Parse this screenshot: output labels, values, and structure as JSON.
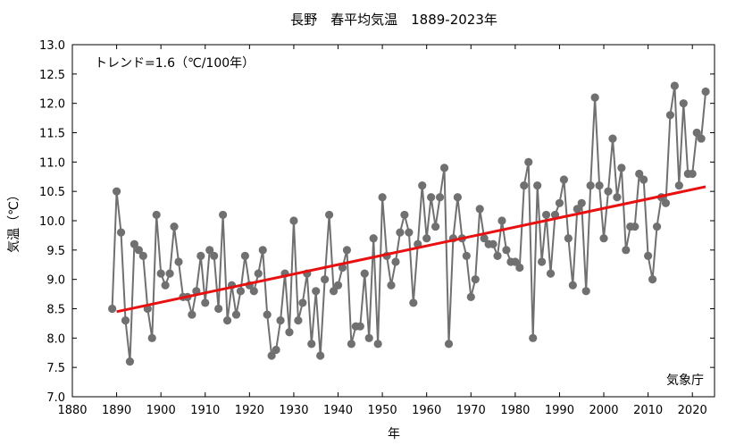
{
  "chart_data": {
    "type": "line",
    "title": "長野　春平均気温　1889-2023年",
    "xlabel": "年",
    "ylabel": "気温（℃）",
    "xlim": [
      1880,
      2025
    ],
    "ylim": [
      7.0,
      13.0
    ],
    "xticks": [
      1880,
      1890,
      1900,
      1910,
      1920,
      1930,
      1940,
      1950,
      1960,
      1970,
      1980,
      1990,
      2000,
      2010,
      2020
    ],
    "yticks": [
      7.0,
      7.5,
      8.0,
      8.5,
      9.0,
      9.5,
      10.0,
      10.5,
      11.0,
      11.5,
      12.0,
      12.5,
      13.0
    ],
    "trend_label": "トレンド=1.6（℃/100年）",
    "credit": "気象庁",
    "series_color": "#707070",
    "trend_color": "#e81010",
    "trend": {
      "x": [
        1890,
        2023
      ],
      "y": [
        8.45,
        10.58
      ]
    },
    "series": [
      {
        "x": [
          1889,
          1890,
          1891,
          1892,
          1893,
          1894,
          1895,
          1896,
          1897,
          1898,
          1899,
          1900,
          1901,
          1902,
          1903,
          1904,
          1905,
          1906,
          1907,
          1908,
          1909,
          1910,
          1911,
          1912,
          1913,
          1914,
          1915,
          1916,
          1917,
          1918,
          1919,
          1920,
          1921,
          1922,
          1923,
          1924,
          1925,
          1926,
          1927,
          1928,
          1929,
          1930,
          1931,
          1932,
          1933,
          1934,
          1935,
          1936,
          1937,
          1938,
          1939,
          1940,
          1941,
          1942,
          1943,
          1944,
          1945,
          1946,
          1947,
          1948,
          1949,
          1950,
          1951,
          1952,
          1953,
          1954,
          1955,
          1956,
          1957,
          1958,
          1959,
          1960,
          1961,
          1962,
          1963,
          1964,
          1965,
          1966,
          1967,
          1968,
          1969,
          1970,
          1971,
          1972,
          1973,
          1974,
          1975,
          1976,
          1977,
          1978,
          1979,
          1980,
          1981,
          1982,
          1983,
          1984,
          1985,
          1986,
          1987,
          1988,
          1989,
          1990,
          1991,
          1992,
          1993,
          1994,
          1995,
          1996,
          1997,
          1998,
          1999,
          2000,
          2001,
          2002,
          2003,
          2004,
          2005,
          2006,
          2007,
          2008,
          2009,
          2010,
          2011,
          2012,
          2013,
          2014,
          2015,
          2016,
          2017,
          2018,
          2019,
          2020,
          2021,
          2022,
          2023
        ],
        "y": [
          8.5,
          10.5,
          9.8,
          8.3,
          7.6,
          9.6,
          9.5,
          9.4,
          8.5,
          8.0,
          10.1,
          9.1,
          8.9,
          9.1,
          9.9,
          9.3,
          8.7,
          8.7,
          8.4,
          8.8,
          9.4,
          8.6,
          9.5,
          9.4,
          8.5,
          10.1,
          8.3,
          8.9,
          8.4,
          8.8,
          9.4,
          8.9,
          8.8,
          9.1,
          9.5,
          8.4,
          7.7,
          7.8,
          8.3,
          9.1,
          8.1,
          10.0,
          8.3,
          8.6,
          9.1,
          7.9,
          8.8,
          7.7,
          9.0,
          10.1,
          8.8,
          8.9,
          9.2,
          9.5,
          7.9,
          8.2,
          8.2,
          9.1,
          8.0,
          9.7,
          7.9,
          10.4,
          9.4,
          8.9,
          9.3,
          9.8,
          10.1,
          9.8,
          8.6,
          9.6,
          10.6,
          9.7,
          10.4,
          9.9,
          10.4,
          10.9,
          7.9,
          9.7,
          10.4,
          9.7,
          9.4,
          8.7,
          9.0,
          10.2,
          9.7,
          9.6,
          9.6,
          9.4,
          10.0,
          9.5,
          9.3,
          9.3,
          9.2,
          10.6,
          11.0,
          8.0,
          10.6,
          9.3,
          10.1,
          9.1,
          10.1,
          10.3,
          10.7,
          9.7,
          8.9,
          10.2,
          10.3,
          8.8,
          10.6,
          12.1,
          10.6,
          9.7,
          10.5,
          11.4,
          10.4,
          10.9,
          9.5,
          9.9,
          9.9,
          10.8,
          10.7,
          9.4,
          9.0,
          9.9,
          10.4,
          10.3,
          11.8,
          12.3,
          10.6,
          12.0,
          10.8,
          10.8,
          11.5,
          11.4,
          12.2
        ]
      }
    ]
  }
}
